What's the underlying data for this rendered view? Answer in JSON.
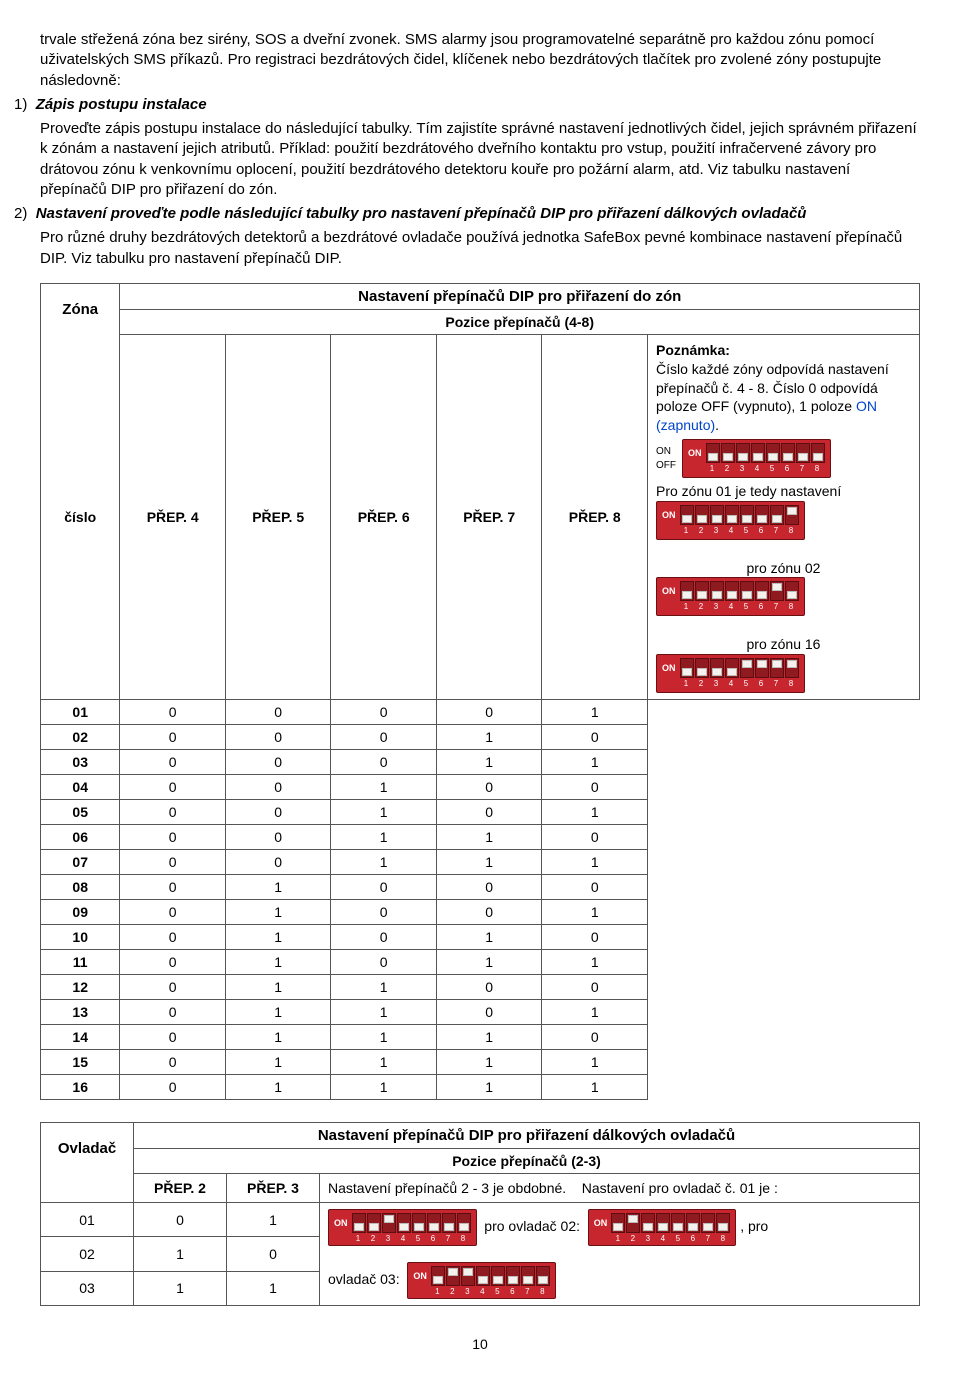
{
  "intro": {
    "p1": "trvale střežená zóna bez sirény, SOS a dveřní zvonek. SMS alarmy jsou programovatelné separátně pro každou zónu pomocí uživatelských SMS příkazů. Pro registraci bezdrátových čidel, klíčenek nebo bezdrátových tlačítek pro zvolené zóny postupujte následovně:",
    "li1_label": "1)",
    "li1_title": "Zápis postupu instalace",
    "li1_body": "Proveďte zápis postupu instalace do následující tabulky. Tím zajistíte správné nastavení jednotlivých čidel, jejich správném přiřazení k zónám a nastavení jejich atributů. Příklad: použití bezdrátového dveřního kontaktu pro vstup, použití infračervené závory pro drátovou zónu k venkovnímu oplocení, použití bezdrátového detektoru kouře pro požární alarm, atd. Viz tabulku nastavení přepínačů DIP pro přiřazení do zón.",
    "li2_label": "2)",
    "li2_title": "Nastavení proveďte podle následující tabulky pro nastavení přepínačů DIP pro přiřazení dálkových ovladačů",
    "li2_body": "Pro různé druhy bezdrátových detektorů a bezdrátové ovladače používá jednotka SafeBox pevné kombinace nastavení přepínačů DIP. Viz tabulku pro nastavení přepínačů DIP."
  },
  "table1": {
    "title": "Nastavení přepínačů DIP pro přiřazení do zón",
    "zone_hdr_top": "Zóna",
    "zone_hdr_bot": "číslo",
    "pos_hdr": "Pozice přepínačů (4-8)",
    "cols": [
      "PŘEP. 4",
      "PŘEP. 5",
      "PŘEP. 6",
      "PŘEP. 7",
      "PŘEP. 8"
    ],
    "rows": [
      {
        "z": "01",
        "v": [
          "0",
          "0",
          "0",
          "0",
          "1"
        ]
      },
      {
        "z": "02",
        "v": [
          "0",
          "0",
          "0",
          "1",
          "0"
        ]
      },
      {
        "z": "03",
        "v": [
          "0",
          "0",
          "0",
          "1",
          "1"
        ]
      },
      {
        "z": "04",
        "v": [
          "0",
          "0",
          "1",
          "0",
          "0"
        ]
      },
      {
        "z": "05",
        "v": [
          "0",
          "0",
          "1",
          "0",
          "1"
        ]
      },
      {
        "z": "06",
        "v": [
          "0",
          "0",
          "1",
          "1",
          "0"
        ]
      },
      {
        "z": "07",
        "v": [
          "0",
          "0",
          "1",
          "1",
          "1"
        ]
      },
      {
        "z": "08",
        "v": [
          "0",
          "1",
          "0",
          "0",
          "0"
        ]
      },
      {
        "z": "09",
        "v": [
          "0",
          "1",
          "0",
          "0",
          "1"
        ]
      },
      {
        "z": "10",
        "v": [
          "0",
          "1",
          "0",
          "1",
          "0"
        ]
      },
      {
        "z": "11",
        "v": [
          "0",
          "1",
          "0",
          "1",
          "1"
        ]
      },
      {
        "z": "12",
        "v": [
          "0",
          "1",
          "1",
          "0",
          "0"
        ]
      },
      {
        "z": "13",
        "v": [
          "0",
          "1",
          "1",
          "0",
          "1"
        ]
      },
      {
        "z": "14",
        "v": [
          "0",
          "1",
          "1",
          "1",
          "0"
        ]
      },
      {
        "z": "15",
        "v": [
          "0",
          "1",
          "1",
          "1",
          "1"
        ]
      },
      {
        "z": "16",
        "v": [
          "0",
          "1",
          "1",
          "1",
          "1"
        ]
      }
    ],
    "note_hdr": "Poznámka:",
    "note_body1": "Číslo každé zóny odpovídá nastavení přepínačů č. 4 - 8. Číslo 0 odpovídá poloze OFF (vypnuto), 1 poloze ",
    "note_on": "ON (zapnuto)",
    "note_body1_end": ".",
    "on_label": "ON",
    "off_label": "OFF",
    "note_line2": "Pro zónu 01 je tedy nastavení",
    "note_line3": "pro zónu 02",
    "note_line4": "pro zónu 16",
    "dip_examples": {
      "generic": [
        0,
        0,
        0,
        0,
        0,
        0,
        0,
        0
      ],
      "zone01": [
        0,
        0,
        0,
        0,
        0,
        0,
        0,
        1
      ],
      "zone02": [
        0,
        0,
        0,
        0,
        0,
        0,
        1,
        0
      ],
      "zone16": [
        0,
        0,
        0,
        0,
        1,
        1,
        1,
        1
      ]
    },
    "dip_colors": {
      "body": "#c8262e",
      "slot": "#8f1a20",
      "switch": "#f5f2ed",
      "text": "#ffffff"
    }
  },
  "table2": {
    "title": "Nastavení přepínačů DIP pro přiřazení dálkových ovladačů",
    "ovl_hdr": "Ovladač",
    "pos_hdr": "Pozice přepínačů (2-3)",
    "cols": [
      "PŘEP. 2",
      "PŘEP. 3"
    ],
    "note_a": "Nastavení přepínačů 2 - 3 je obdobné.",
    "note_b": "Nastavení pro ovladač č. 01 je :",
    "rows": [
      {
        "o": "01",
        "v": [
          "0",
          "1"
        ]
      },
      {
        "o": "02",
        "v": [
          "1",
          "0"
        ]
      },
      {
        "o": "03",
        "v": [
          "1",
          "1"
        ]
      }
    ],
    "txt_ovl02_pre": "pro ovladač 02:",
    "txt_ovl02_post": ", pro",
    "txt_ovl03": "ovladač 03:",
    "dip_examples": {
      "ovl01": [
        0,
        0,
        1,
        0,
        0,
        0,
        0,
        0
      ],
      "ovl02": [
        0,
        1,
        0,
        0,
        0,
        0,
        0,
        0
      ],
      "ovl03": [
        0,
        1,
        1,
        0,
        0,
        0,
        0,
        0
      ]
    }
  },
  "page_number": "10"
}
